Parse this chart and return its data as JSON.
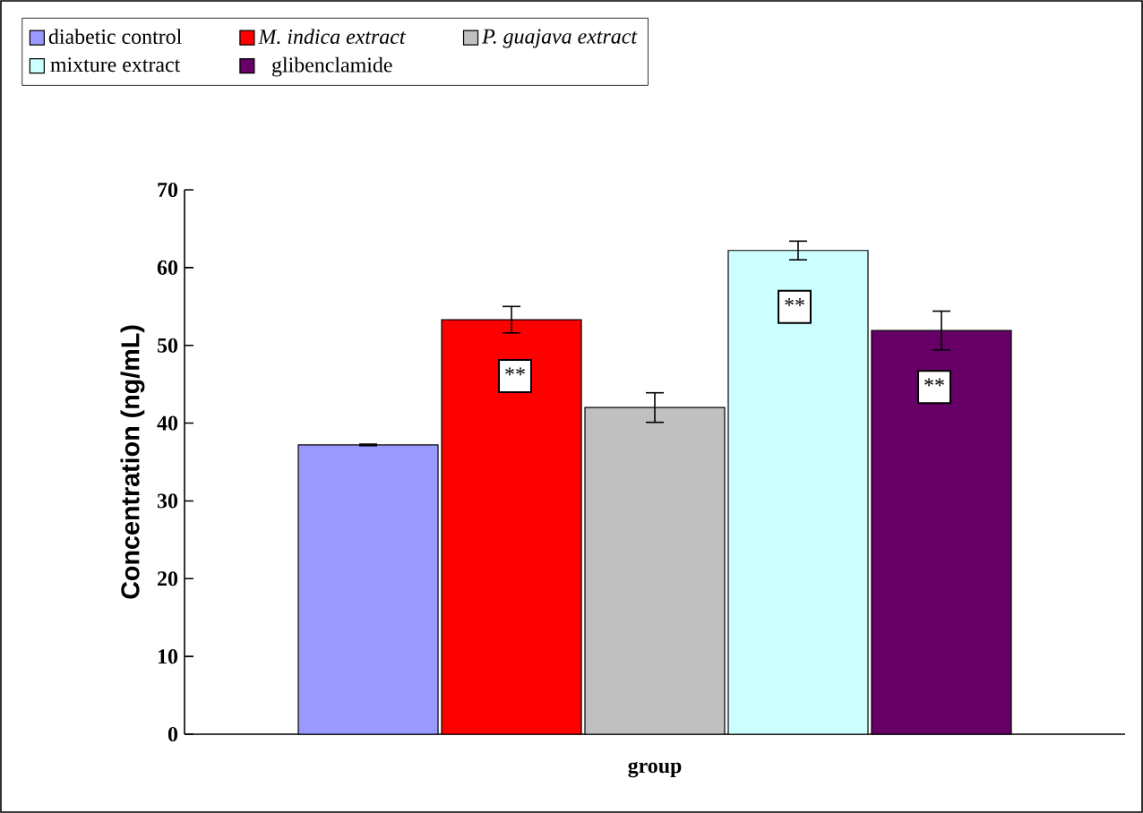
{
  "chart_data": {
    "type": "bar",
    "xlabel": "group",
    "ylabel": "Concentration (ng/mL)",
    "categories": [
      null
    ],
    "series": [
      {
        "name": "diabetic control",
        "color": "#9999ff",
        "values": [
          37.2
        ],
        "errors": [
          0.1
        ]
      },
      {
        "name": "*M. indica extract*",
        "color": "#ff0000",
        "values": [
          53.3
        ],
        "errors": [
          1.7
        ],
        "value_labels": [
          "**"
        ]
      },
      {
        "name": "*P. guajava  extract*",
        "color": "#c0c0c0",
        "values": [
          42.0
        ],
        "errors": [
          1.9
        ]
      },
      {
        "name": "mixture extract",
        "color": "#ccffff",
        "values": [
          62.2
        ],
        "errors": [
          1.2
        ],
        "value_labels": [
          "**"
        ]
      },
      {
        "name": "glibenclamide",
        "color": "#660066",
        "values": [
          51.9
        ],
        "errors": [
          2.5
        ],
        "value_labels": [
          "**"
        ]
      }
    ],
    "ylim": [
      0,
      70
    ],
    "yticks": [
      0,
      10,
      20,
      30,
      40,
      50,
      60,
      70
    ],
    "grid": false,
    "legend": "top"
  }
}
